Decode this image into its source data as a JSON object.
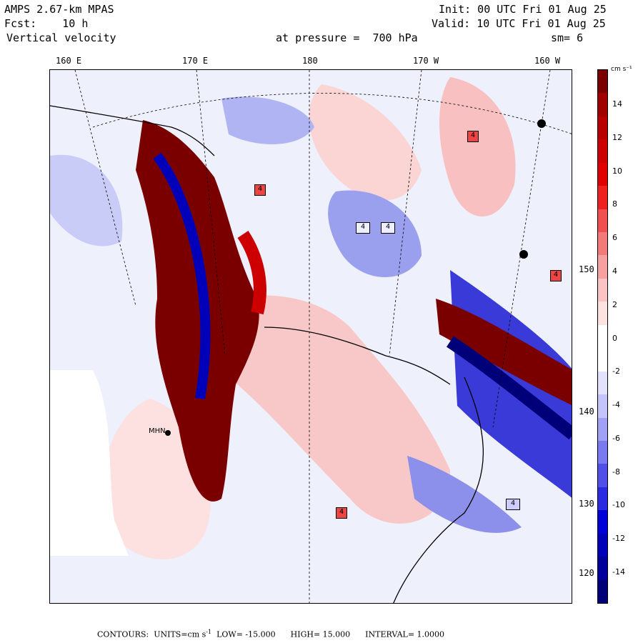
{
  "header": {
    "model": "AMPS 2.67-km MPAS",
    "forecast_label": "Fcst:",
    "forecast_value": "10 h",
    "field": "Vertical velocity",
    "level_label": "at pressure =",
    "level_value": "700 hPa",
    "init": "Init: 00 UTC Fri 01 Aug 25",
    "valid": "Valid: 10 UTC Fri 01 Aug 25",
    "smoothing": "sm= 6"
  },
  "longitude_labels": [
    "160 E",
    "170 E",
    "180",
    "170 W",
    "160 W"
  ],
  "latitude_labels": [
    "150 W",
    "140 W",
    "130 W",
    "120 W"
  ],
  "colorbar": {
    "units": "cm s⁻¹",
    "tick_labels": [
      "14",
      "12",
      "10",
      "8",
      "6",
      "4",
      "2",
      "0",
      "-2",
      "-4",
      "-6",
      "-8",
      "-10",
      "-12",
      "-14"
    ],
    "colors": [
      "#7a0000",
      "#a00000",
      "#b80000",
      "#cc0000",
      "#e00000",
      "#ee2020",
      "#f05050",
      "#f47a7a",
      "#f7a0a0",
      "#fac4c4",
      "#fde2e2",
      "#ffffff",
      "#ffffff",
      "#e2e2fd",
      "#c4c4fa",
      "#a0a0f5",
      "#7a7af0",
      "#5050e8",
      "#2a2ae0",
      "#0000d8",
      "#0000b8",
      "#00009a",
      "#000078"
    ]
  },
  "station_label": "MHN",
  "contour_box_label": "4",
  "footer": {
    "contours": "CONTOURS:",
    "units_label": "UNITS=cm s",
    "units_sup": "-1",
    "low": "LOW= -15.000",
    "high": "HIGH= 15.000",
    "interval": "INTERVAL= 1.0000"
  }
}
